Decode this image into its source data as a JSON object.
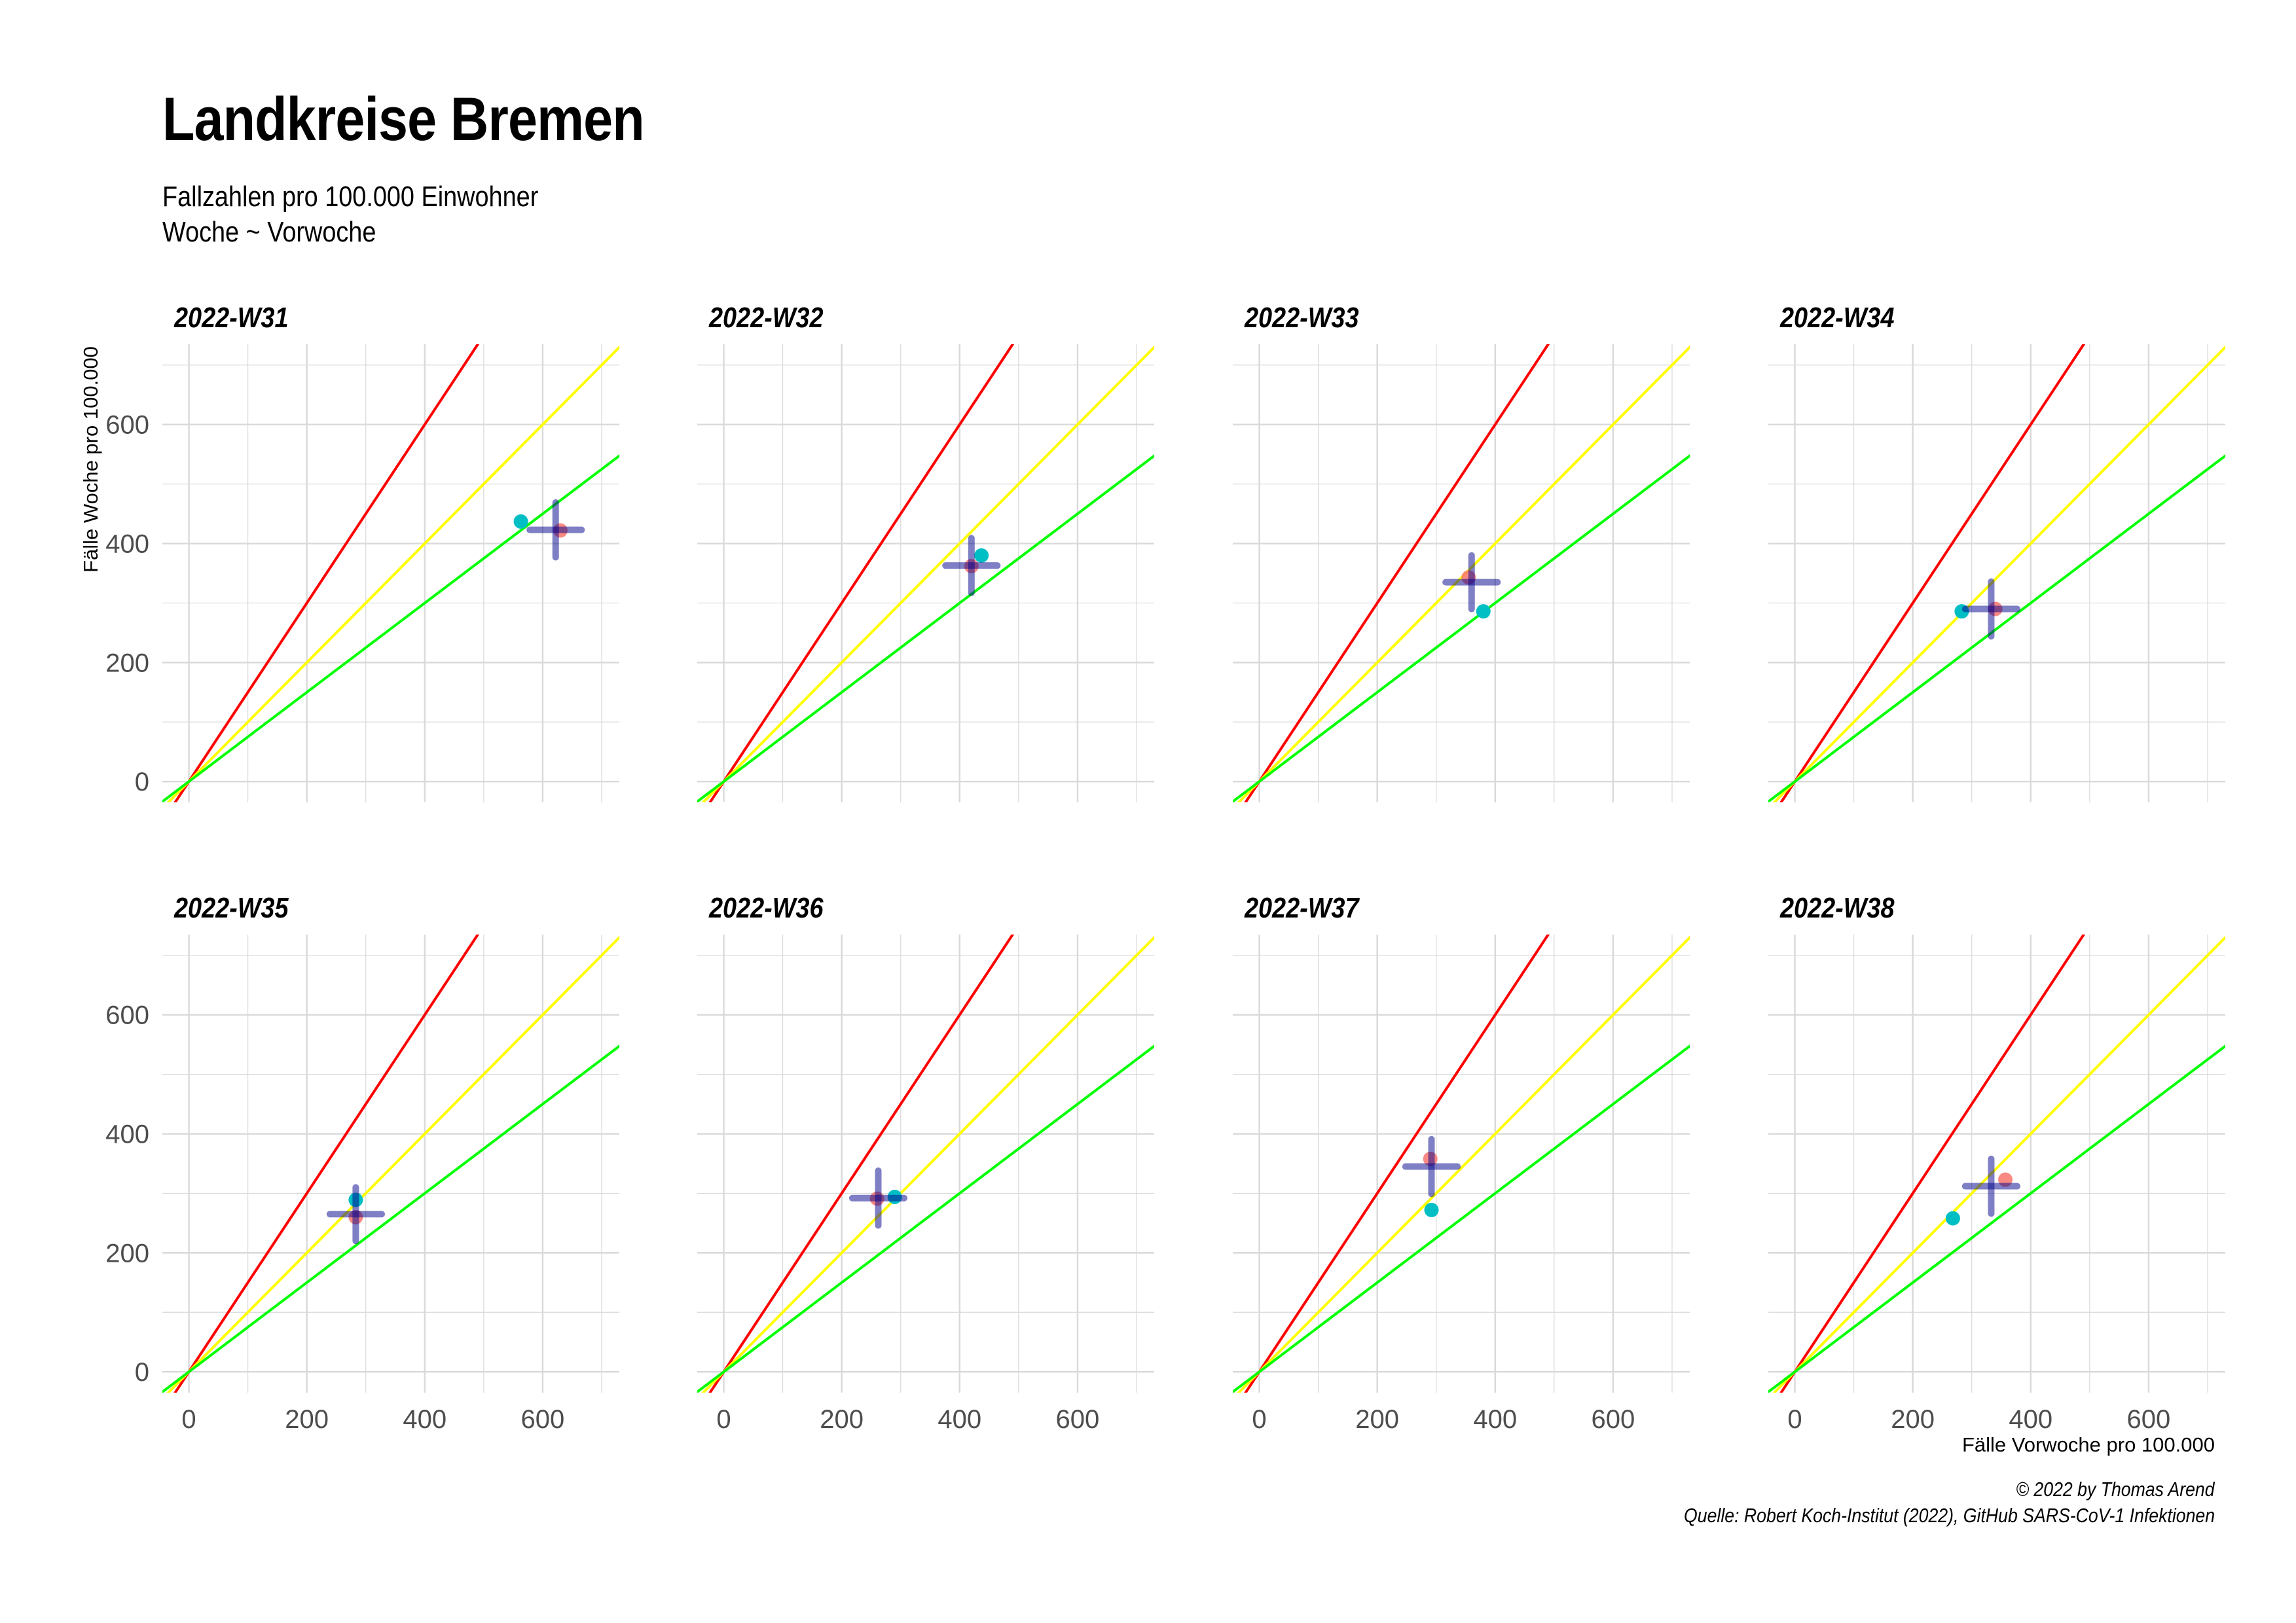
{
  "title": "Landkreise Bremen",
  "subtitle": [
    "Fallzahlen pro 100.000 Einwohner",
    "Woche ~ Vorwoche"
  ],
  "caption": [
    "© 2022 by Thomas Arend",
    "Quelle: Robert Koch-Institut (2022), GitHub SARS-CoV-1 Infektionen"
  ],
  "colors": {
    "red_line": "#ff0000",
    "yellow_line": "#ffff00",
    "green_line": "#00ff00",
    "cyan_point": "#00bfc4",
    "red_point": "#f8766d",
    "crosshair": "#00008b",
    "grid": "#d9d9d9"
  },
  "chart_data": {
    "type": "scatter",
    "facets": "2 rows x 4 columns, shared axes",
    "xlabel": "Fälle Vorwoche pro 100.000",
    "ylabel": "Fälle Woche pro 100.000",
    "xlim": [
      -45,
      730
    ],
    "ylim": [
      -35,
      735
    ],
    "x_ticks": [
      0,
      200,
      400,
      600
    ],
    "y_ticks": [
      0,
      200,
      400,
      600
    ],
    "grid": true,
    "reference_lines": [
      {
        "color": "red",
        "slope": 1.5
      },
      {
        "color": "yellow",
        "slope": 1.0
      },
      {
        "color": "green",
        "slope": 0.75
      }
    ],
    "panels": [
      {
        "label": "2022-W31",
        "points": [
          {
            "color": "cyan",
            "x": 563,
            "y": 437
          },
          {
            "color": "red",
            "x": 630,
            "y": 422
          }
        ],
        "crosshair": {
          "x": 622,
          "y": 423,
          "x_range": [
            578,
            666
          ],
          "y_range": [
            377,
            469
          ]
        }
      },
      {
        "label": "2022-W32",
        "points": [
          {
            "color": "cyan",
            "x": 437,
            "y": 380
          },
          {
            "color": "red",
            "x": 420,
            "y": 362
          }
        ],
        "crosshair": {
          "x": 420,
          "y": 363,
          "x_range": [
            376,
            464
          ],
          "y_range": [
            317,
            409
          ]
        }
      },
      {
        "label": "2022-W33",
        "points": [
          {
            "color": "cyan",
            "x": 380,
            "y": 286
          },
          {
            "color": "red",
            "x": 355,
            "y": 343
          }
        ],
        "crosshair": {
          "x": 360,
          "y": 335,
          "x_range": [
            316,
            404
          ],
          "y_range": [
            290,
            380
          ]
        }
      },
      {
        "label": "2022-W34",
        "points": [
          {
            "color": "cyan",
            "x": 283,
            "y": 286
          },
          {
            "color": "red",
            "x": 340,
            "y": 290
          }
        ],
        "crosshair": {
          "x": 333,
          "y": 290,
          "x_range": [
            289,
            377
          ],
          "y_range": [
            244,
            336
          ]
        }
      },
      {
        "label": "2022-W35",
        "points": [
          {
            "color": "cyan",
            "x": 283,
            "y": 289
          },
          {
            "color": "red",
            "x": 283,
            "y": 260
          }
        ],
        "crosshair": {
          "x": 283,
          "y": 265,
          "x_range": [
            239,
            327
          ],
          "y_range": [
            220,
            310
          ]
        }
      },
      {
        "label": "2022-W36",
        "points": [
          {
            "color": "cyan",
            "x": 290,
            "y": 294
          },
          {
            "color": "red",
            "x": 260,
            "y": 291
          }
        ],
        "crosshair": {
          "x": 262,
          "y": 292,
          "x_range": [
            218,
            306
          ],
          "y_range": [
            246,
            338
          ]
        }
      },
      {
        "label": "2022-W37",
        "points": [
          {
            "color": "cyan",
            "x": 292,
            "y": 272
          },
          {
            "color": "red",
            "x": 290,
            "y": 358
          }
        ],
        "crosshair": {
          "x": 292,
          "y": 345,
          "x_range": [
            248,
            336
          ],
          "y_range": [
            299,
            391
          ]
        }
      },
      {
        "label": "2022-W38",
        "points": [
          {
            "color": "cyan",
            "x": 268,
            "y": 258
          },
          {
            "color": "red",
            "x": 357,
            "y": 323
          }
        ],
        "crosshair": {
          "x": 333,
          "y": 312,
          "x_range": [
            289,
            377
          ],
          "y_range": [
            266,
            358
          ]
        }
      }
    ]
  }
}
